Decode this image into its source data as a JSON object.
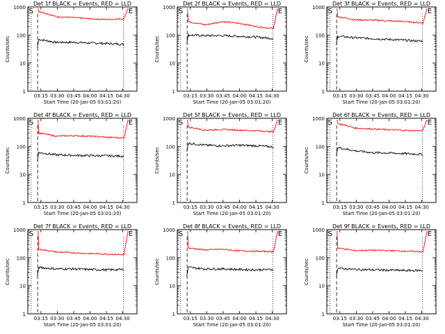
{
  "xaxis": {
    "tick_labels": [
      "03:15",
      "03:30",
      "03:45",
      "04:00",
      "04:15",
      "04:30"
    ],
    "xlabel": "Start Time (20-Jan-05 03:01:20)"
  },
  "yaxis": {
    "ylabel": "Counts/sec",
    "tick_labels": [
      "1",
      "10",
      "100",
      "1000"
    ],
    "scale": "log",
    "ylim": [
      1,
      1000
    ]
  },
  "markers": {
    "start_label": "S",
    "end_label": "E"
  },
  "colors": {
    "events": "#000000",
    "lld": "#ff0000"
  },
  "chart_data": [
    {
      "type": "line",
      "title": "Det 1f BLACK = Events, RED = LLD",
      "x": [
        "03:15",
        "03:30",
        "03:45",
        "04:00",
        "04:15",
        "04:30"
      ],
      "series": [
        {
          "name": "Events",
          "values": [
            70,
            55,
            55,
            52,
            50,
            47
          ]
        },
        {
          "name": "LLD",
          "values": [
            700,
            450,
            420,
            380,
            360,
            380
          ]
        }
      ]
    },
    {
      "type": "line",
      "title": "Det 2f BLACK = Events, RED = LLD",
      "x": [
        "03:15",
        "03:30",
        "03:45",
        "04:00",
        "04:15",
        "04:30"
      ],
      "series": [
        {
          "name": "Events",
          "values": [
            100,
            95,
            95,
            90,
            85,
            75
          ]
        },
        {
          "name": "LLD",
          "values": [
            300,
            230,
            300,
            260,
            200,
            170
          ]
        }
      ]
    },
    {
      "type": "line",
      "title": "Det 3f BLACK = Events, RED = LLD",
      "x": [
        "03:15",
        "03:30",
        "03:45",
        "04:00",
        "04:15",
        "04:30"
      ],
      "series": [
        {
          "name": "Events",
          "values": [
            90,
            80,
            75,
            70,
            65,
            60
          ]
        },
        {
          "name": "LLD",
          "values": [
            450,
            350,
            340,
            320,
            300,
            270
          ]
        }
      ]
    },
    {
      "type": "line",
      "title": "Det 4f BLACK = Events, RED = LLD",
      "x": [
        "03:15",
        "03:30",
        "03:45",
        "04:00",
        "04:15",
        "04:30"
      ],
      "series": [
        {
          "name": "Events",
          "values": [
            60,
            50,
            48,
            47,
            46,
            45
          ]
        },
        {
          "name": "LLD",
          "values": [
            300,
            230,
            240,
            230,
            210,
            200
          ]
        }
      ]
    },
    {
      "type": "line",
      "title": "Det 5f BLACK = Events, RED = LLD",
      "x": [
        "03:15",
        "03:30",
        "03:45",
        "04:00",
        "04:15",
        "04:30"
      ],
      "series": [
        {
          "name": "Events",
          "values": [
            130,
            110,
            105,
            110,
            105,
            95
          ]
        },
        {
          "name": "LLD",
          "values": [
            480,
            380,
            400,
            380,
            360,
            330
          ]
        }
      ]
    },
    {
      "type": "line",
      "title": "Det 6f BLACK = Events, RED = LLD",
      "x": [
        "03:15",
        "03:30",
        "03:45",
        "04:00",
        "04:15",
        "04:30"
      ],
      "series": [
        {
          "name": "Events",
          "values": [
            90,
            70,
            60,
            58,
            55,
            52
          ]
        },
        {
          "name": "LLD",
          "values": [
            650,
            450,
            420,
            390,
            370,
            360
          ]
        }
      ]
    },
    {
      "type": "line",
      "title": "Det 7f BLACK = Events, RED = LLD",
      "x": [
        "03:15",
        "03:30",
        "03:45",
        "04:00",
        "04:15",
        "04:30"
      ],
      "series": [
        {
          "name": "Events",
          "values": [
            45,
            40,
            40,
            38,
            37,
            38
          ]
        },
        {
          "name": "LLD",
          "values": [
            200,
            160,
            150,
            140,
            135,
            130
          ]
        }
      ]
    },
    {
      "type": "line",
      "title": "Det 8f BLACK = Events, RED = LLD",
      "x": [
        "03:15",
        "03:30",
        "03:45",
        "04:00",
        "04:15",
        "04:30"
      ],
      "series": [
        {
          "name": "Events",
          "values": [
            45,
            40,
            40,
            38,
            37,
            38
          ]
        },
        {
          "name": "LLD",
          "values": [
            220,
            190,
            200,
            175,
            170,
            165
          ]
        }
      ]
    },
    {
      "type": "line",
      "title": "Det 9f BLACK = Events, RED = LLD",
      "x": [
        "03:15",
        "03:30",
        "03:45",
        "04:00",
        "04:15",
        "04:30"
      ],
      "series": [
        {
          "name": "Events",
          "values": [
            42,
            38,
            37,
            36,
            35,
            35
          ]
        },
        {
          "name": "LLD",
          "values": [
            220,
            180,
            185,
            180,
            170,
            165
          ]
        }
      ]
    }
  ]
}
